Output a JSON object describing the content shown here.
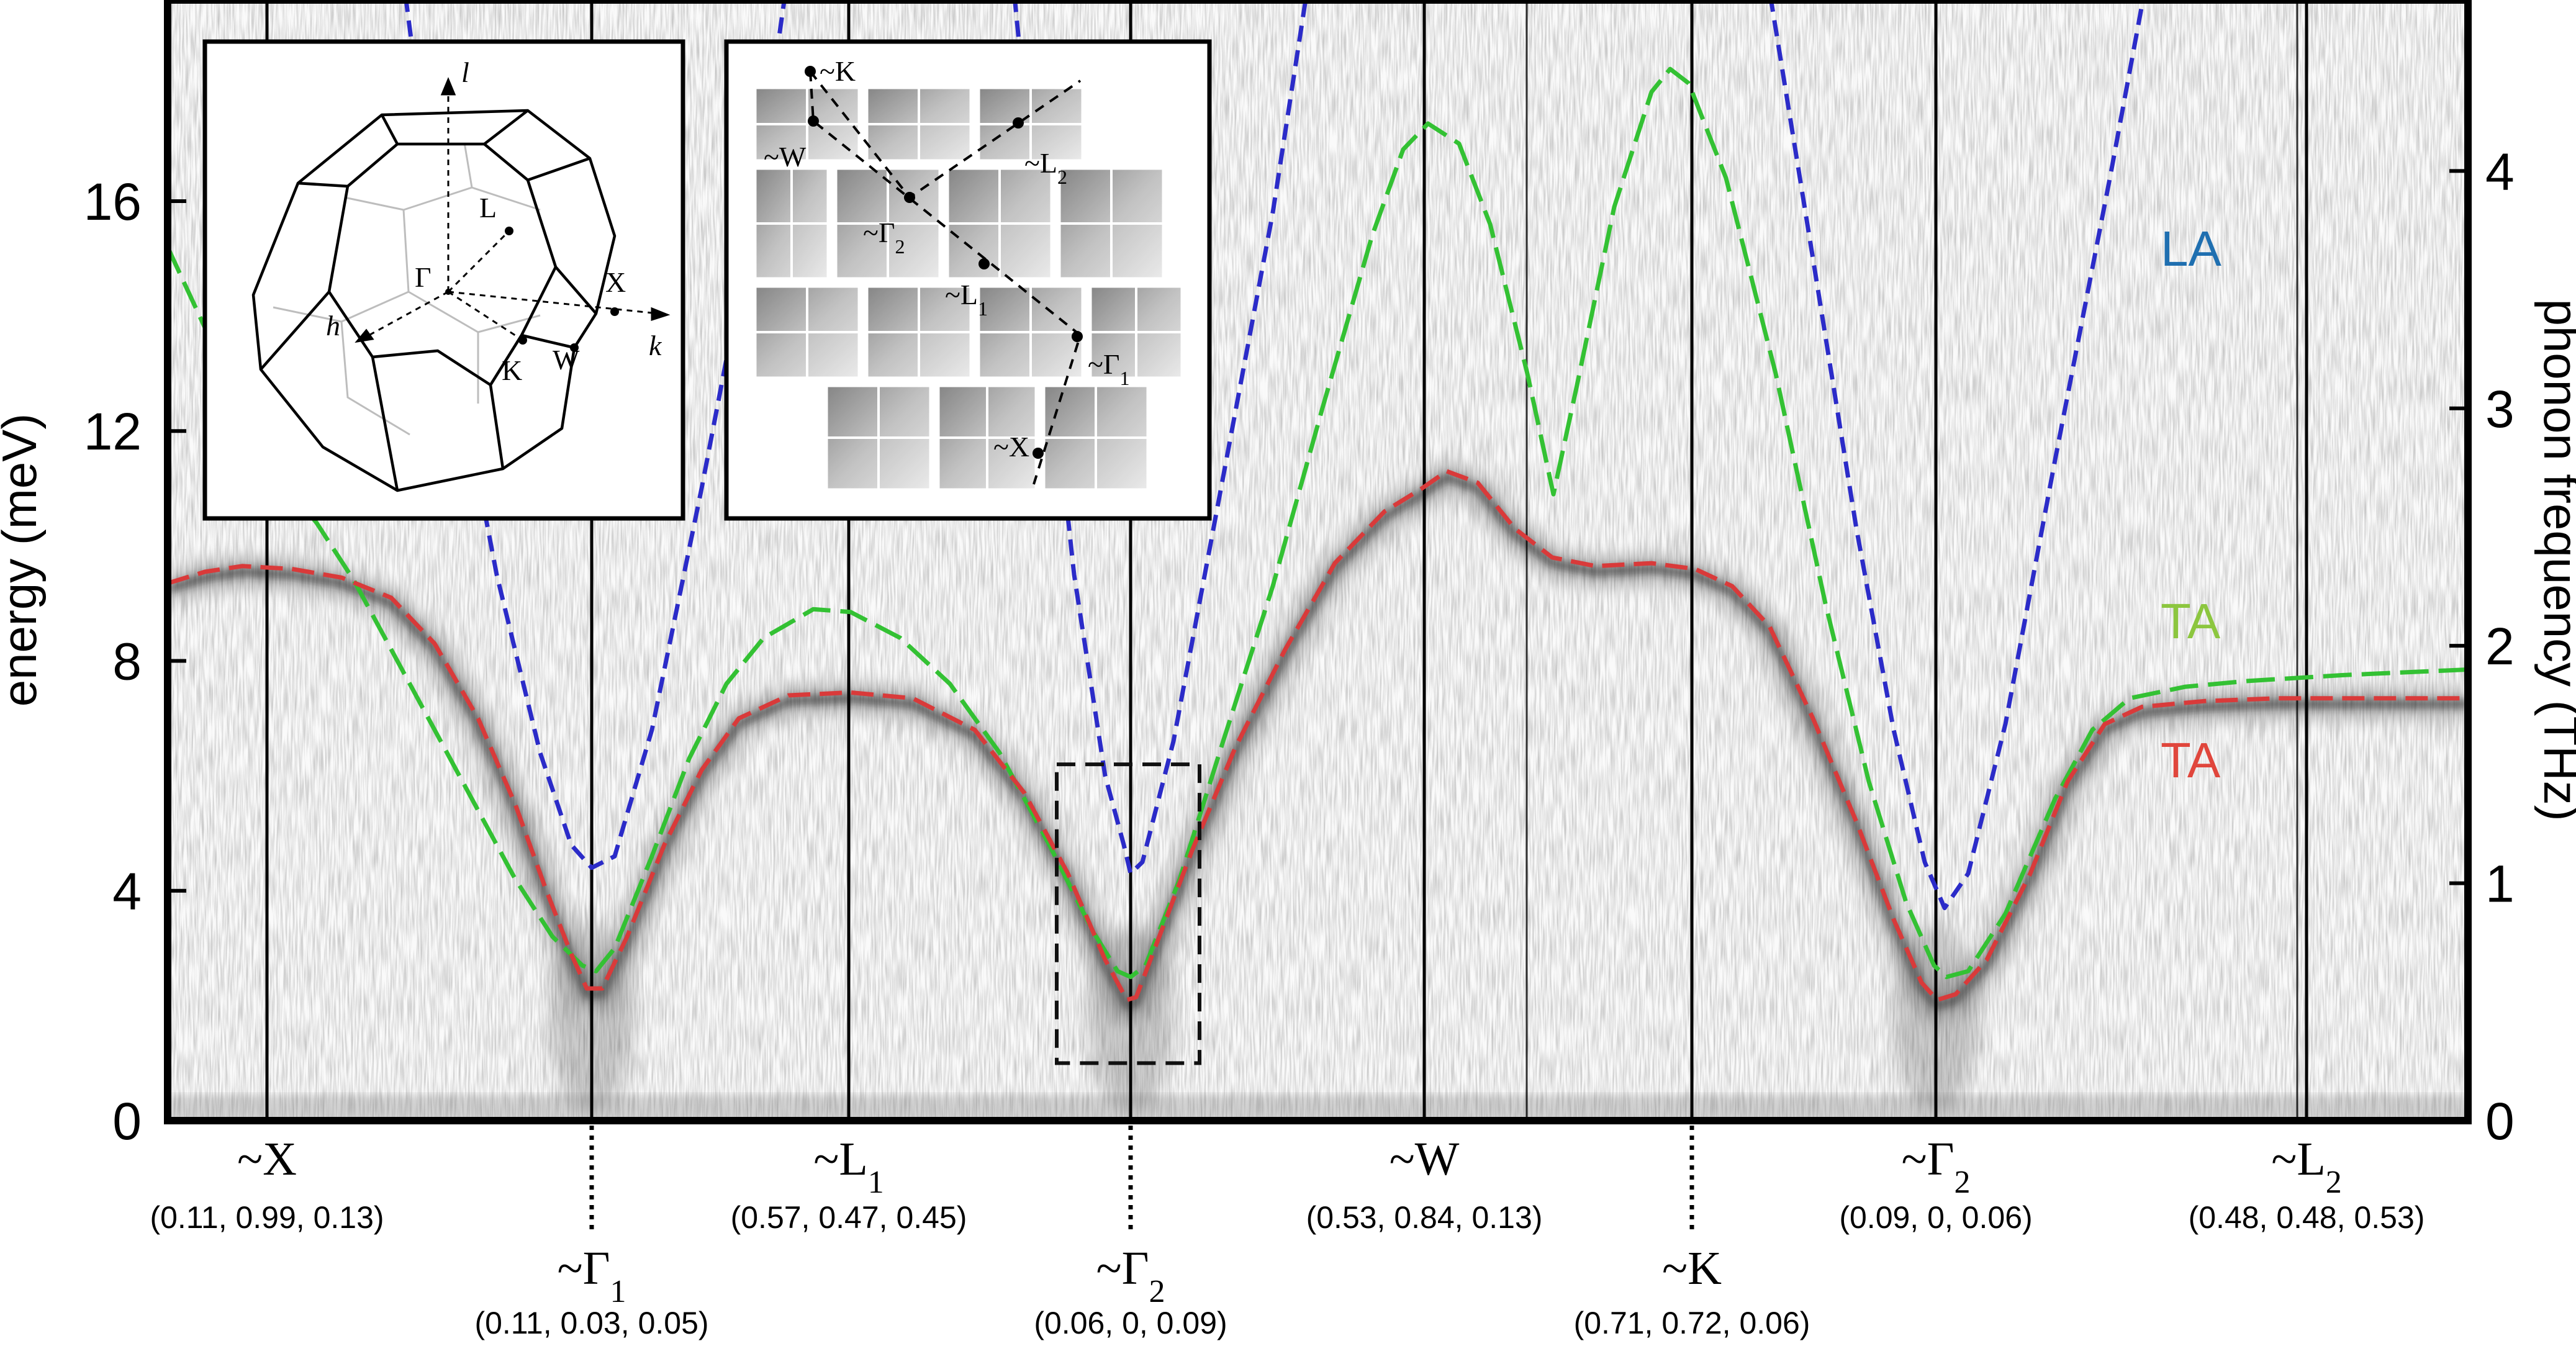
{
  "chart_data": {
    "type": "line",
    "title": "",
    "xlabel": "",
    "ylabel": "energy (meV)",
    "ylabel_right": "phonon frequency (THz)",
    "ylim": [
      0,
      19.5
    ],
    "ylim_right_thz": [
      0,
      4.72
    ],
    "yticks": [
      0,
      4,
      8,
      12,
      16
    ],
    "yticks_right": [
      0,
      1,
      2,
      3,
      4
    ],
    "xlim": [
      0,
      3705
    ],
    "points": [
      {
        "name": "~X",
        "coord": "(0.11, 0.99, 0.13)",
        "x": 160,
        "row": "top",
        "line": "solid"
      },
      {
        "name": "~Γ",
        "sub": "1",
        "coord": "(0.11, 0.03, 0.05)",
        "x": 683,
        "row": "bottom",
        "line": "dotted"
      },
      {
        "name": "~L",
        "sub": "1",
        "coord": "(0.57, 0.47, 0.45)",
        "x": 1097,
        "row": "top",
        "line": "solid"
      },
      {
        "name": "~Γ",
        "sub": "2",
        "coord": "(0.06, 0, 0.09)",
        "x": 1551,
        "row": "bottom",
        "line": "dotted"
      },
      {
        "name": "~W",
        "coord": "(0.53, 0.84, 0.13)",
        "x": 2024,
        "row": "top",
        "line": "solid"
      },
      {
        "name": "~K",
        "coord": "(0.71, 0.72, 0.06)",
        "x": 2455,
        "row": "bottom",
        "line": "dotted"
      },
      {
        "name": "~Γ",
        "sub": "2",
        "coord": "(0.09, 0, 0.06)",
        "x": 2848,
        "row": "top",
        "line": "solid"
      },
      {
        "name": "~L",
        "sub": "2",
        "coord": "(0.48, 0.48, 0.53)",
        "x": 3445,
        "row": "top",
        "line": "solid"
      }
    ],
    "extra_dividers_x": [
      2189,
      3430
    ],
    "series": [
      {
        "name": "LA",
        "color": "#2b2bc8",
        "dash": "short",
        "segments": [
          [
            [
              378,
              20.0
            ],
            [
              450,
              14.0
            ],
            [
              530,
              9.5
            ],
            [
              600,
              6.4
            ],
            [
              650,
              4.8
            ],
            [
              683,
              4.4
            ],
            [
              720,
              4.6
            ],
            [
              780,
              6.8
            ],
            [
              860,
              11.0
            ],
            [
              940,
              15.5
            ],
            [
              1000,
              20.0
            ]
          ],
          [
            [
              1360,
              20.0
            ],
            [
              1410,
              14.5
            ],
            [
              1460,
              9.5
            ],
            [
              1510,
              6.0
            ],
            [
              1540,
              4.8
            ],
            [
              1551,
              4.3
            ],
            [
              1570,
              4.5
            ],
            [
              1620,
              6.6
            ],
            [
              1700,
              11.2
            ],
            [
              1780,
              15.8
            ],
            [
              1840,
              20.0
            ]
          ],
          [
            [
              2575,
              20.0
            ],
            [
              2650,
              15.0
            ],
            [
              2720,
              10.3
            ],
            [
              2780,
              6.8
            ],
            [
              2830,
              4.5
            ],
            [
              2862,
              3.7
            ],
            [
              2900,
              4.3
            ],
            [
              2960,
              6.9
            ],
            [
              3040,
              11.5
            ],
            [
              3130,
              16.5
            ],
            [
              3190,
              20.0
            ]
          ]
        ]
      },
      {
        "name": "TA",
        "color": "#33c133",
        "dash": "long",
        "segments": [
          [
            [
              0,
              15.2
            ],
            [
              60,
              13.8
            ],
            [
              120,
              12.2
            ],
            [
              180,
              11.2
            ],
            [
              240,
              10.4
            ],
            [
              300,
              9.4
            ],
            [
              360,
              8.2
            ],
            [
              430,
              6.8
            ],
            [
              500,
              5.4
            ],
            [
              560,
              4.2
            ],
            [
              620,
              3.2
            ],
            [
              668,
              2.7
            ],
            [
              690,
              2.6
            ],
            [
              720,
              3.0
            ],
            [
              780,
              4.6
            ],
            [
              840,
              6.3
            ],
            [
              900,
              7.6
            ],
            [
              960,
              8.4
            ],
            [
              1040,
              8.9
            ],
            [
              1100,
              8.85
            ],
            [
              1180,
              8.4
            ],
            [
              1260,
              7.6
            ],
            [
              1340,
              6.4
            ],
            [
              1420,
              4.8
            ],
            [
              1490,
              3.3
            ],
            [
              1530,
              2.6
            ],
            [
              1551,
              2.5
            ],
            [
              1575,
              2.7
            ],
            [
              1630,
              4.2
            ],
            [
              1700,
              6.6
            ],
            [
              1780,
              9.3
            ],
            [
              1860,
              12.4
            ],
            [
              1940,
              15.4
            ],
            [
              1990,
              16.9
            ],
            [
              2030,
              17.35
            ],
            [
              2080,
              17.0
            ],
            [
              2130,
              15.6
            ],
            [
              2190,
              13.0
            ],
            [
              2232,
              10.9
            ],
            [
              2270,
              12.8
            ],
            [
              2330,
              15.9
            ],
            [
              2390,
              17.9
            ],
            [
              2420,
              18.3
            ],
            [
              2450,
              18.05
            ],
            [
              2510,
              16.4
            ],
            [
              2590,
              13.0
            ],
            [
              2670,
              9.0
            ],
            [
              2740,
              5.9
            ],
            [
              2800,
              3.8
            ],
            [
              2845,
              2.7
            ],
            [
              2865,
              2.5
            ],
            [
              2900,
              2.6
            ],
            [
              2960,
              3.6
            ],
            [
              3040,
              5.6
            ],
            [
              3100,
              6.8
            ],
            [
              3160,
              7.35
            ],
            [
              3250,
              7.55
            ],
            [
              3350,
              7.65
            ],
            [
              3500,
              7.75
            ],
            [
              3705,
              7.85
            ]
          ]
        ]
      },
      {
        "name": "TA",
        "color": "#d93a3a",
        "dash": "medium",
        "segments": [
          [
            [
              0,
              9.35
            ],
            [
              60,
              9.55
            ],
            [
              120,
              9.65
            ],
            [
              200,
              9.6
            ],
            [
              280,
              9.45
            ],
            [
              360,
              9.1
            ],
            [
              430,
              8.3
            ],
            [
              500,
              7.0
            ],
            [
              560,
              5.5
            ],
            [
              610,
              4.0
            ],
            [
              650,
              2.9
            ],
            [
              675,
              2.3
            ],
            [
              700,
              2.3
            ],
            [
              740,
              3.2
            ],
            [
              800,
              4.8
            ],
            [
              860,
              6.1
            ],
            [
              920,
              7.0
            ],
            [
              1000,
              7.4
            ],
            [
              1100,
              7.45
            ],
            [
              1200,
              7.35
            ],
            [
              1300,
              6.8
            ],
            [
              1380,
              5.7
            ],
            [
              1450,
              4.3
            ],
            [
              1510,
              2.8
            ],
            [
              1545,
              2.1
            ],
            [
              1560,
              2.15
            ],
            [
              1590,
              3.0
            ],
            [
              1650,
              4.7
            ],
            [
              1720,
              6.5
            ],
            [
              1800,
              8.2
            ],
            [
              1880,
              9.7
            ],
            [
              1960,
              10.6
            ],
            [
              2020,
              11.0
            ],
            [
              2060,
              11.3
            ],
            [
              2110,
              11.1
            ],
            [
              2170,
              10.3
            ],
            [
              2230,
              9.8
            ],
            [
              2300,
              9.65
            ],
            [
              2390,
              9.7
            ],
            [
              2460,
              9.6
            ],
            [
              2520,
              9.3
            ],
            [
              2580,
              8.6
            ],
            [
              2650,
              7.0
            ],
            [
              2720,
              5.2
            ],
            [
              2780,
              3.5
            ],
            [
              2825,
              2.4
            ],
            [
              2850,
              2.1
            ],
            [
              2880,
              2.2
            ],
            [
              2930,
              2.8
            ],
            [
              3000,
              4.3
            ],
            [
              3060,
              5.9
            ],
            [
              3120,
              6.9
            ],
            [
              3180,
              7.2
            ],
            [
              3280,
              7.3
            ],
            [
              3400,
              7.35
            ],
            [
              3705,
              7.35
            ]
          ]
        ]
      }
    ],
    "series_labels": [
      {
        "text": "LA",
        "color": "#1f6fb0"
      },
      {
        "text": "TA",
        "color": "#8cc63f"
      },
      {
        "text": "TA",
        "color": "#e0463c"
      }
    ],
    "intensity_map": {
      "description": "inelastic x-ray scattering intensity, grayscale",
      "cutoff_box": {
        "x": [
          1432,
          1662
        ],
        "y": [
          1.0,
          6.2
        ]
      }
    }
  },
  "insets": {
    "brillouin_zone": {
      "axes": {
        "l": "l",
        "h": "h",
        "k": "k"
      },
      "points": {
        "gamma": "Γ",
        "L": "L",
        "X": "X",
        "K": "K",
        "W": "W"
      }
    },
    "detector_map": {
      "labels": [
        {
          "text": "~K"
        },
        {
          "text": "~W"
        },
        {
          "text": "~L",
          "sub": "2"
        },
        {
          "text": "~Γ",
          "sub": "2"
        },
        {
          "text": "~L",
          "sub": "1"
        },
        {
          "text": "~Γ",
          "sub": "1"
        },
        {
          "text": "~X"
        }
      ]
    }
  }
}
